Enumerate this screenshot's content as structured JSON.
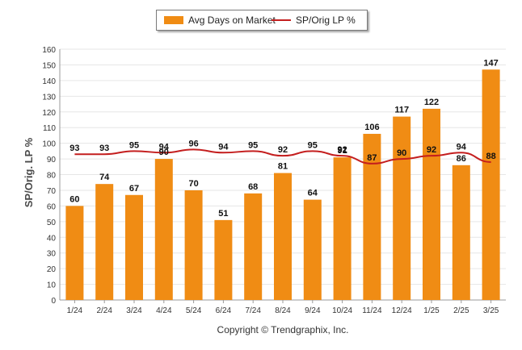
{
  "colors": {
    "bar": "#F08C14",
    "line": "#C41E1E",
    "grid": "#e6e6e6",
    "axis": "#999999"
  },
  "legend": {
    "bar_label": "Avg Days on Market",
    "line_label": "SP/Orig LP %"
  },
  "copyright": "Copyright © Trendgraphix, Inc.",
  "chart_data": {
    "type": "bar",
    "categories": [
      "1/24",
      "2/24",
      "3/24",
      "4/24",
      "5/24",
      "6/24",
      "7/24",
      "8/24",
      "9/24",
      "10/24",
      "11/24",
      "12/24",
      "1/25",
      "2/25",
      "3/25"
    ],
    "series": [
      {
        "name": "Avg Days on Market",
        "type": "bar",
        "values": [
          60,
          74,
          67,
          90,
          70,
          51,
          68,
          81,
          64,
          91,
          106,
          117,
          122,
          86,
          147
        ]
      },
      {
        "name": "SP/Orig LP %",
        "type": "line",
        "values": [
          93,
          93,
          95,
          94,
          96,
          94,
          95,
          92,
          95,
          92,
          87,
          90,
          92,
          94,
          88
        ]
      }
    ],
    "ylabel": "SP/Orig. LP %",
    "ylim": [
      0,
      160
    ],
    "yticks": [
      0,
      10,
      20,
      30,
      40,
      50,
      60,
      70,
      80,
      90,
      100,
      110,
      120,
      130,
      140,
      150,
      160
    ],
    "grid": true,
    "legend": "top-center"
  }
}
